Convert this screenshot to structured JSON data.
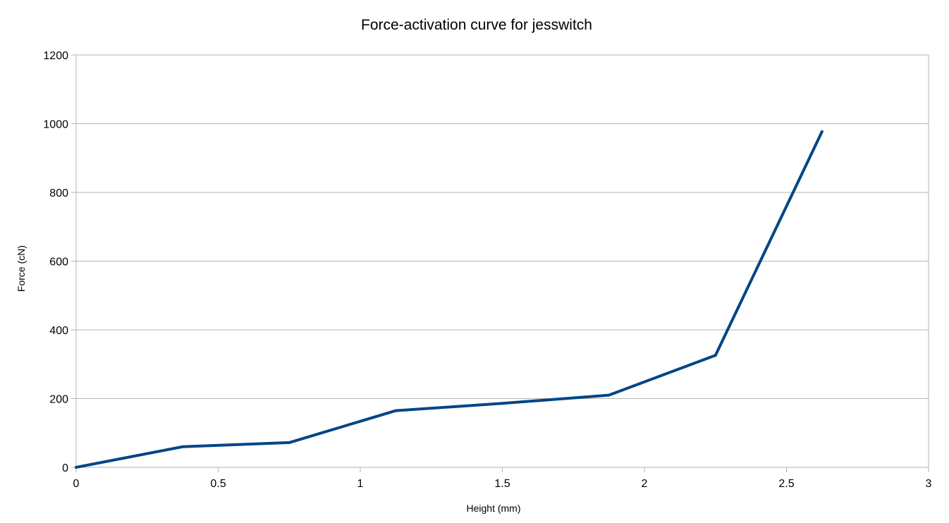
{
  "chart_data": {
    "type": "line",
    "title": "Force-activation curve for jesswitch",
    "xlabel": "Height (mm)",
    "ylabel": "Force (cN)",
    "xlim": [
      0,
      3
    ],
    "ylim": [
      0,
      1200
    ],
    "x_ticks": [
      0,
      0.5,
      1,
      1.5,
      2,
      2.5,
      3
    ],
    "x_tick_labels": [
      "0",
      "0.5",
      "1",
      "1.5",
      "2",
      "2.5",
      "3"
    ],
    "y_ticks": [
      0,
      200,
      400,
      600,
      800,
      1000,
      1200
    ],
    "y_tick_labels": [
      "0",
      "200",
      "400",
      "600",
      "800",
      "1000",
      "1200"
    ],
    "grid": "horizontal",
    "legend": "none",
    "series": [
      {
        "color": "#004586",
        "x": [
          0,
          0.375,
          0.75,
          1.125,
          1.5,
          1.875,
          2.25,
          2.625
        ],
        "y": [
          0,
          60,
          72,
          165,
          186,
          210,
          326,
          977
        ]
      }
    ]
  }
}
